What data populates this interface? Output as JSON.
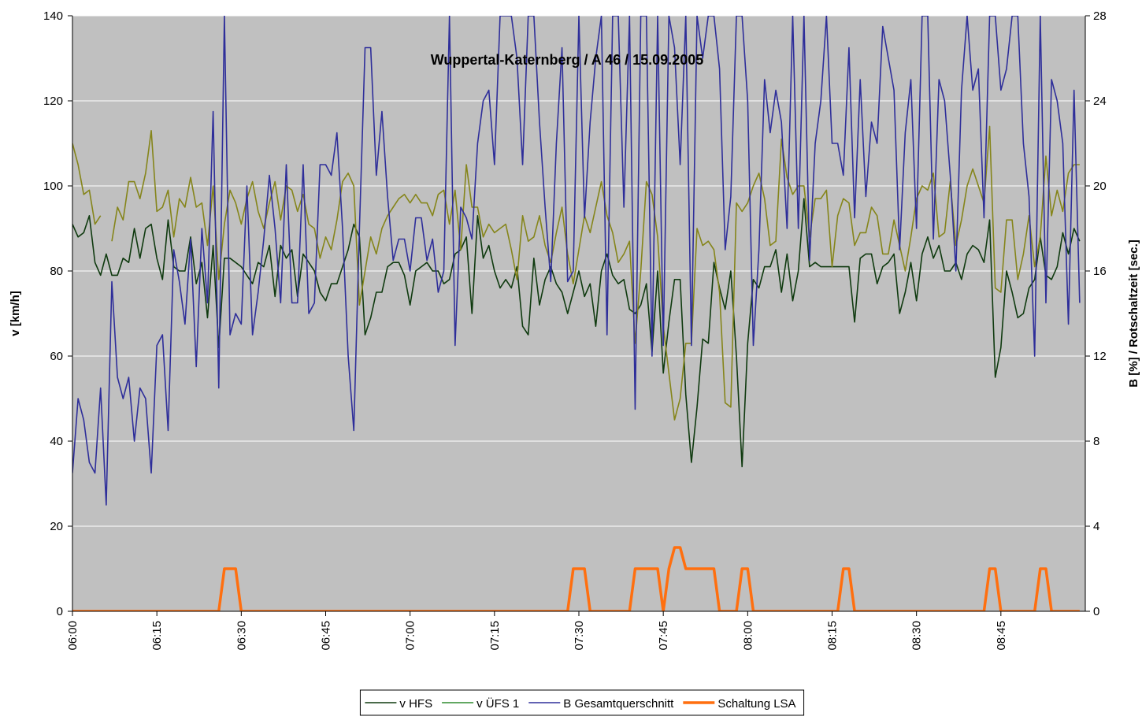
{
  "chart_data": {
    "type": "line",
    "title": "Wuppertal-Katernberg / A 46 / 15.09.2005",
    "ylabel": "v [km/h]",
    "y2label": "B [%] / Rotschaltzeit [sec.]",
    "ylim": [
      0,
      140
    ],
    "yticks": [
      0,
      20,
      40,
      60,
      80,
      100,
      120,
      140
    ],
    "y2lim": [
      0,
      28
    ],
    "y2ticks": [
      0,
      4,
      8,
      12,
      16,
      20,
      24,
      28
    ],
    "grid": true,
    "legend": "bottom",
    "categories": [
      "06:00",
      null,
      null,
      null,
      null,
      null,
      null,
      null,
      null,
      null,
      null,
      null,
      null,
      null,
      null,
      "06:15",
      null,
      null,
      null,
      null,
      null,
      null,
      null,
      null,
      null,
      null,
      null,
      null,
      null,
      null,
      "06:30",
      null,
      null,
      null,
      null,
      null,
      null,
      null,
      null,
      null,
      null,
      null,
      null,
      null,
      null,
      "06:45",
      null,
      null,
      null,
      null,
      null,
      null,
      null,
      null,
      null,
      null,
      null,
      null,
      null,
      null,
      "07:00",
      null,
      null,
      null,
      null,
      null,
      null,
      null,
      null,
      null,
      null,
      null,
      null,
      null,
      null,
      "07:15",
      null,
      null,
      null,
      null,
      null,
      null,
      null,
      null,
      null,
      null,
      null,
      null,
      null,
      null,
      "07:30",
      null,
      null,
      null,
      null,
      null,
      null,
      null,
      null,
      null,
      null,
      null,
      null,
      null,
      null,
      "07:45",
      null,
      null,
      null,
      null,
      null,
      null,
      null,
      null,
      null,
      null,
      null,
      null,
      null,
      null,
      "08:00",
      null,
      null,
      null,
      null,
      null,
      null,
      null,
      null,
      null,
      null,
      null,
      null,
      null,
      null,
      "08:15",
      null,
      null,
      null,
      null,
      null,
      null,
      null,
      null,
      null,
      null,
      null,
      null,
      null,
      null,
      "08:30",
      null,
      null,
      null,
      null,
      null,
      null,
      null,
      null,
      null,
      null,
      null,
      null,
      null,
      null,
      "08:45",
      null,
      null,
      null,
      null,
      null,
      null,
      null,
      null,
      null,
      null,
      null,
      null,
      null,
      null
    ],
    "series": [
      {
        "name": "v HFS",
        "color": "#0f3a0f",
        "legend_color": "#0f3a0f",
        "width": 1.6,
        "values": [
          91,
          88,
          89,
          93,
          82,
          79,
          84,
          79,
          79,
          83,
          82,
          90,
          83,
          90,
          91,
          83,
          78,
          92,
          81,
          80,
          80,
          88,
          77,
          82,
          69,
          86,
          62,
          83,
          83,
          82,
          81,
          79,
          77,
          82,
          81,
          86,
          74,
          86,
          83,
          85,
          74,
          84,
          82,
          80,
          75,
          73,
          77,
          77,
          81,
          85,
          91,
          88,
          65,
          69,
          75,
          75,
          81,
          82,
          82,
          79,
          72,
          80,
          81,
          82,
          80,
          80,
          77,
          78,
          84,
          85,
          88,
          70,
          93,
          83,
          86,
          80,
          76,
          78,
          76,
          81,
          67,
          65,
          83,
          72,
          78,
          81,
          77,
          75,
          70,
          75,
          80,
          74,
          77,
          67,
          80,
          84,
          79,
          77,
          78,
          71,
          70,
          72,
          77,
          61,
          80,
          56,
          68,
          78,
          78,
          51,
          35,
          48,
          64,
          63,
          82,
          76,
          71,
          80,
          60,
          34,
          63,
          78,
          76,
          81,
          81,
          85,
          75,
          84,
          73,
          80,
          97,
          81,
          82,
          81,
          81,
          81,
          81,
          81,
          81,
          68,
          83,
          84,
          84,
          77,
          81,
          82,
          84,
          70,
          75,
          82,
          73,
          84,
          88,
          83,
          86,
          80,
          80,
          82,
          78,
          84,
          86,
          85,
          82,
          92,
          55,
          62,
          80,
          75,
          69,
          70,
          76,
          78,
          88,
          79,
          78,
          81,
          89,
          84,
          90,
          87
        ]
      },
      {
        "name": "v ÜFS 1",
        "color": "#85851a",
        "legend_color": "#2e8b2e",
        "width": 1.6,
        "values": [
          110,
          105,
          98,
          99,
          91,
          93,
          null,
          87,
          95,
          92,
          101,
          101,
          97,
          103,
          113,
          94,
          95,
          99,
          88,
          97,
          95,
          102,
          95,
          96,
          86,
          100,
          78,
          91,
          99,
          96,
          91,
          97,
          101,
          94,
          90,
          96,
          101,
          92,
          100,
          99,
          94,
          98,
          91,
          90,
          83,
          88,
          85,
          92,
          101,
          103,
          100,
          72,
          80,
          88,
          84,
          90,
          93,
          95,
          97,
          98,
          96,
          98,
          96,
          96,
          93,
          98,
          99,
          91,
          99,
          85,
          105,
          95,
          95,
          88,
          91,
          89,
          90,
          91,
          85,
          78,
          93,
          87,
          88,
          93,
          86,
          82,
          89,
          95,
          84,
          77,
          85,
          93,
          89,
          95,
          101,
          93,
          89,
          82,
          84,
          87,
          63,
          80,
          101,
          98,
          88,
          67,
          56,
          45,
          50,
          63,
          63,
          90,
          86,
          87,
          85,
          75,
          49,
          48,
          96,
          94,
          96,
          100,
          103,
          97,
          86,
          87,
          111,
          102,
          98,
          100,
          100,
          88,
          97,
          97,
          99,
          81,
          93,
          97,
          96,
          86,
          89,
          89,
          95,
          93,
          84,
          84,
          92,
          86,
          80,
          88,
          97,
          100,
          99,
          103,
          88,
          89,
          101,
          86,
          92,
          100,
          104,
          100,
          96,
          114,
          76,
          75,
          92,
          92,
          78,
          84,
          93,
          81,
          88,
          107,
          93,
          99,
          94,
          103,
          105,
          105
        ]
      },
      {
        "name": "B Gesamtquerschnitt",
        "color": "#2e2e9a",
        "legend_color": "#2e2e9a",
        "width": 1.6,
        "axis": "y2",
        "values": [
          6.5,
          10,
          9,
          7,
          6.5,
          10.5,
          5,
          15.5,
          11,
          10,
          11,
          8,
          10.5,
          10,
          6.5,
          12.5,
          13,
          8.5,
          17,
          15.5,
          13.5,
          17.5,
          11.5,
          18,
          14.5,
          23.5,
          10.5,
          28,
          13,
          14,
          13.5,
          20,
          13,
          15,
          17.5,
          20.5,
          18,
          14.5,
          21,
          14.5,
          14.5,
          21,
          14,
          14.5,
          21,
          21,
          20.5,
          22.5,
          18,
          12,
          8.5,
          18,
          26.5,
          26.5,
          20.5,
          23.5,
          19.5,
          16.5,
          17.5,
          17.5,
          16,
          18.5,
          18.5,
          16.5,
          17.5,
          15,
          16,
          28,
          12.5,
          19,
          18.5,
          17.5,
          22,
          24,
          24.5,
          21,
          28,
          28,
          28,
          26,
          21,
          28,
          28,
          23,
          19,
          15.5,
          22,
          26.5,
          15.5,
          16,
          28,
          18.5,
          23,
          26,
          28,
          13,
          28,
          28,
          19,
          28,
          9.5,
          28,
          28,
          12,
          28,
          12.5,
          28,
          26.5,
          21,
          28,
          12.5,
          28,
          26,
          28,
          28,
          25.5,
          17,
          19.5,
          28,
          28,
          24,
          12.5,
          17,
          25,
          22.5,
          24.5,
          23,
          18,
          28,
          18,
          28,
          16.5,
          22,
          24,
          28,
          22,
          22,
          20.5,
          26.5,
          18.5,
          25,
          19.5,
          23,
          22,
          27.5,
          26,
          24.5,
          17,
          22.5,
          25,
          18,
          28,
          28,
          17.5,
          25,
          24,
          20.5,
          16,
          24.5,
          28,
          24.5,
          25.5,
          18.5,
          28,
          28,
          24.5,
          25.5,
          28,
          28,
          22,
          19.5,
          12,
          28,
          14.5,
          25,
          24,
          22,
          13.5,
          24.5,
          14.5
        ]
      },
      {
        "name": "Schaltung LSA",
        "color": "#ff6f0f",
        "legend_color": "#ff6f0f",
        "width": 3.5,
        "axis": "y2",
        "values": [
          0,
          0,
          0,
          0,
          0,
          0,
          0,
          0,
          0,
          0,
          0,
          0,
          0,
          0,
          0,
          0,
          0,
          0,
          0,
          0,
          0,
          0,
          0,
          0,
          0,
          0,
          0,
          2,
          2,
          2,
          0,
          0,
          0,
          0,
          0,
          0,
          0,
          0,
          0,
          0,
          0,
          0,
          0,
          0,
          0,
          0,
          0,
          0,
          0,
          0,
          0,
          0,
          0,
          0,
          0,
          0,
          0,
          0,
          0,
          0,
          0,
          0,
          0,
          0,
          0,
          0,
          0,
          0,
          0,
          0,
          0,
          0,
          0,
          0,
          0,
          0,
          0,
          0,
          0,
          0,
          0,
          0,
          0,
          0,
          0,
          0,
          0,
          0,
          0,
          2,
          2,
          2,
          0,
          0,
          0,
          0,
          0,
          0,
          0,
          0,
          2,
          2,
          2,
          2,
          2,
          0,
          2,
          3,
          3,
          2,
          2,
          2,
          2,
          2,
          2,
          0,
          0,
          0,
          0,
          2,
          2,
          0,
          0,
          0,
          0,
          0,
          0,
          0,
          0,
          0,
          0,
          0,
          0,
          0,
          0,
          0,
          0,
          2,
          2,
          0,
          0,
          0,
          0,
          0,
          0,
          0,
          0,
          0,
          0,
          0,
          0,
          0,
          0,
          0,
          0,
          0,
          0,
          0,
          0,
          0,
          0,
          0,
          0,
          2,
          2,
          0,
          0,
          0,
          0,
          0,
          0,
          0,
          2,
          2,
          0,
          0,
          0,
          0,
          0,
          0
        ]
      }
    ]
  }
}
